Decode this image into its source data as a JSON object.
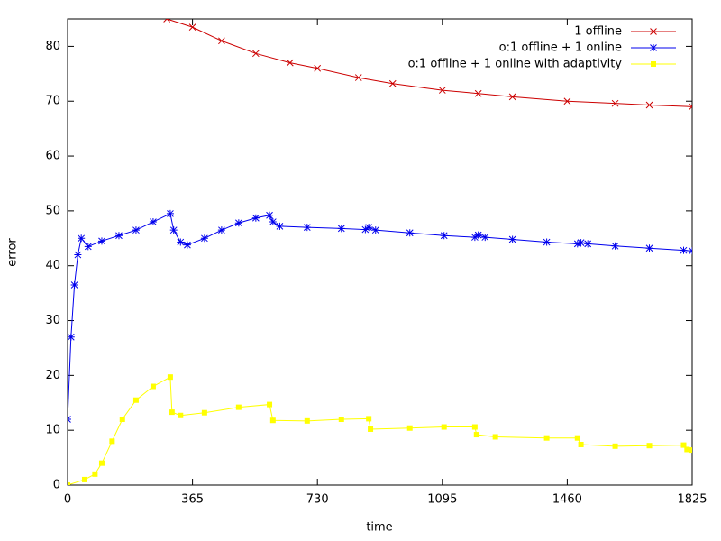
{
  "chart_data": {
    "type": "line",
    "xlabel": "time",
    "ylabel": "error",
    "xlim": [
      0,
      1825
    ],
    "xticks": [
      0,
      365,
      730,
      1095,
      1460,
      1825
    ],
    "ylim": [
      0,
      85
    ],
    "yticks": [
      0,
      10,
      20,
      30,
      40,
      50,
      60,
      70,
      80
    ],
    "legend": "upper right",
    "series": [
      {
        "name": "1 offline",
        "color": "#cc0000",
        "marker": "x",
        "x": [
          290,
          365,
          450,
          550,
          650,
          730,
          850,
          950,
          1095,
          1200,
          1300,
          1460,
          1600,
          1700,
          1825
        ],
        "values": [
          85,
          83.5,
          81,
          78.7,
          77,
          76,
          74.3,
          73.2,
          72,
          71.4,
          70.8,
          70,
          69.6,
          69.3,
          69
        ]
      },
      {
        "name": "o:1 offline + 1 online",
        "color": "#0000ee",
        "marker": "star",
        "x": [
          0,
          10,
          20,
          30,
          40,
          60,
          100,
          150,
          200,
          250,
          300,
          310,
          330,
          350,
          400,
          450,
          500,
          550,
          590,
          600,
          620,
          700,
          800,
          870,
          880,
          900,
          1000,
          1100,
          1190,
          1200,
          1220,
          1300,
          1400,
          1490,
          1500,
          1520,
          1600,
          1700,
          1800,
          1825
        ],
        "values": [
          12,
          27,
          36.5,
          42,
          45,
          43.5,
          44.5,
          45.5,
          46.5,
          48,
          49.5,
          46.5,
          44.3,
          43.8,
          45,
          46.5,
          47.8,
          48.7,
          49.2,
          48,
          47.2,
          47,
          46.8,
          46.6,
          47,
          46.5,
          46,
          45.5,
          45.2,
          45.6,
          45.2,
          44.8,
          44.3,
          44,
          44.2,
          44,
          43.6,
          43.2,
          42.8,
          42.7
        ]
      },
      {
        "name": "o:1 offline + 1 online with adaptivity",
        "color": "#ffff00",
        "marker": "square",
        "x": [
          0,
          50,
          80,
          100,
          130,
          160,
          200,
          250,
          300,
          305,
          330,
          400,
          500,
          590,
          600,
          700,
          800,
          880,
          885,
          1000,
          1100,
          1190,
          1195,
          1250,
          1400,
          1490,
          1500,
          1600,
          1700,
          1800,
          1810,
          1825
        ],
        "values": [
          0,
          1,
          2,
          4,
          8,
          12,
          15.5,
          18,
          19.7,
          13.3,
          12.7,
          13.2,
          14.2,
          14.7,
          11.8,
          11.7,
          12,
          12.1,
          10.2,
          10.4,
          10.6,
          10.6,
          9.2,
          8.8,
          8.6,
          8.6,
          7.4,
          7.1,
          7.2,
          7.3,
          6.5,
          6.4
        ]
      }
    ]
  }
}
